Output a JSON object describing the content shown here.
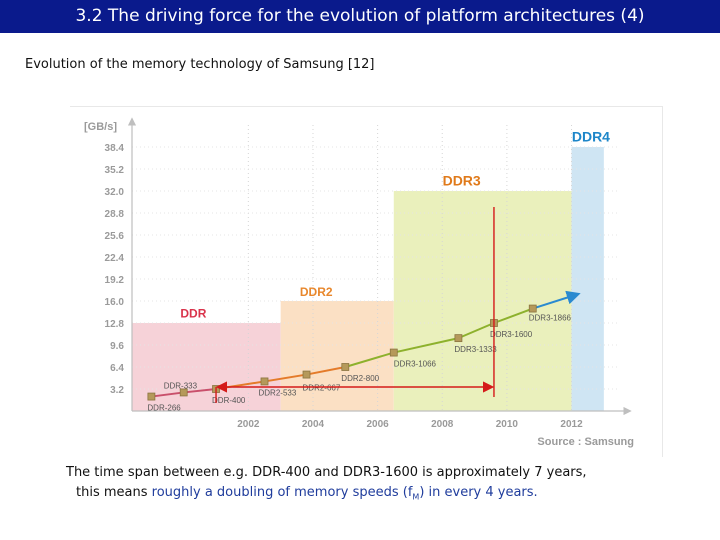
{
  "slide": {
    "title": "3.2 The driving force for the evolution of platform architectures (4)",
    "subtitle": "Evolution of the memory technology of Samsung [12]"
  },
  "caption": {
    "line1": "The time span between e.g. DDR-400 and DDR3-1600 is approximately 7 years,",
    "line2_plain": "this means",
    "line2_highlight": "roughly a doubling of memory speeds (f",
    "line2_sub": "M",
    "line2_end": ") in every 4 years."
  },
  "colors": {
    "title_bg": "#0a1a8c",
    "ddr_zone": "#f6d2d8",
    "ddr2_zone": "#fbe0c4",
    "ddr3_zone": "#eaf0bc",
    "ddr4_zone": "#cfe5f3",
    "ddr_label": "#d9334b",
    "ddr2_label": "#e8872c",
    "ddr3_label": "#e07a1a",
    "ddr4_label": "#1d86c9",
    "annotation": "#d41a1a"
  },
  "chart_data": {
    "type": "line",
    "ylabel": "[GB/s]",
    "source": "Source : Samsung",
    "y_ticks": [
      "3.2",
      "6.4",
      "9.6",
      "12.8",
      "16.0",
      "19.2",
      "22.4",
      "25.6",
      "28.8",
      "32.0",
      "35.2",
      "38.4"
    ],
    "x_ticks": [
      "2002",
      "2004",
      "2006",
      "2008",
      "2010",
      "2012"
    ],
    "ylim": [
      0,
      41.6
    ],
    "xlim": [
      1998.4,
      2013.5
    ],
    "zones": [
      {
        "name": "DDR",
        "x_start": 1998.4,
        "x_end": 2003.0,
        "y_top": 12.8,
        "color_key": "ddr_zone",
        "label_color_key": "ddr_label"
      },
      {
        "name": "DDR2",
        "x_start": 2003.0,
        "x_end": 2006.5,
        "y_top": 16.0,
        "color_key": "ddr2_zone",
        "label_color_key": "ddr2_label"
      },
      {
        "name": "DDR3",
        "x_start": 2006.5,
        "x_end": 2012.0,
        "y_top": 32.0,
        "color_key": "ddr3_zone",
        "label_color_key": "ddr3_label"
      },
      {
        "name": "DDR4",
        "x_start": 2012.0,
        "x_end": 2013.0,
        "y_top": 38.4,
        "color_key": "ddr4_zone",
        "label_color_key": "ddr4_label"
      }
    ],
    "series": [
      {
        "name": "DDR",
        "color": "#c9506b",
        "points": [
          {
            "label": "DDR-266",
            "x": 1999.0,
            "y": 2.1
          },
          {
            "label": "DDR-333",
            "x": 2000.0,
            "y": 2.7
          },
          {
            "label": "DDR-400",
            "x": 2001.0,
            "y": 3.2
          }
        ]
      },
      {
        "name": "DDR2",
        "color": "#e47b2a",
        "points": [
          {
            "label": "DDR2-533",
            "x": 2002.5,
            "y": 4.3
          },
          {
            "label": "DDR2-667",
            "x": 2003.8,
            "y": 5.3
          },
          {
            "label": "DDR2-800",
            "x": 2005.0,
            "y": 6.4
          }
        ]
      },
      {
        "name": "DDR3",
        "color": "#8db12d",
        "points": [
          {
            "label": "DDR3-1066",
            "x": 2006.5,
            "y": 8.5
          },
          {
            "label": "DDR3-1333",
            "x": 2008.5,
            "y": 10.6
          },
          {
            "label": "DDR3-1600",
            "x": 2009.6,
            "y": 12.8
          },
          {
            "label": "DDR3-1866",
            "x": 2010.8,
            "y": 14.9
          }
        ]
      },
      {
        "name": "DDR4",
        "color": "#2a8ad0",
        "points": [
          {
            "label": "",
            "x": 2012.2,
            "y": 17.0
          }
        ]
      }
    ],
    "annotation": {
      "type": "double-arrow",
      "from_x": 2001.0,
      "to_x": 2009.6,
      "marker_label": "DDR-400 to DDR3-1600"
    }
  }
}
